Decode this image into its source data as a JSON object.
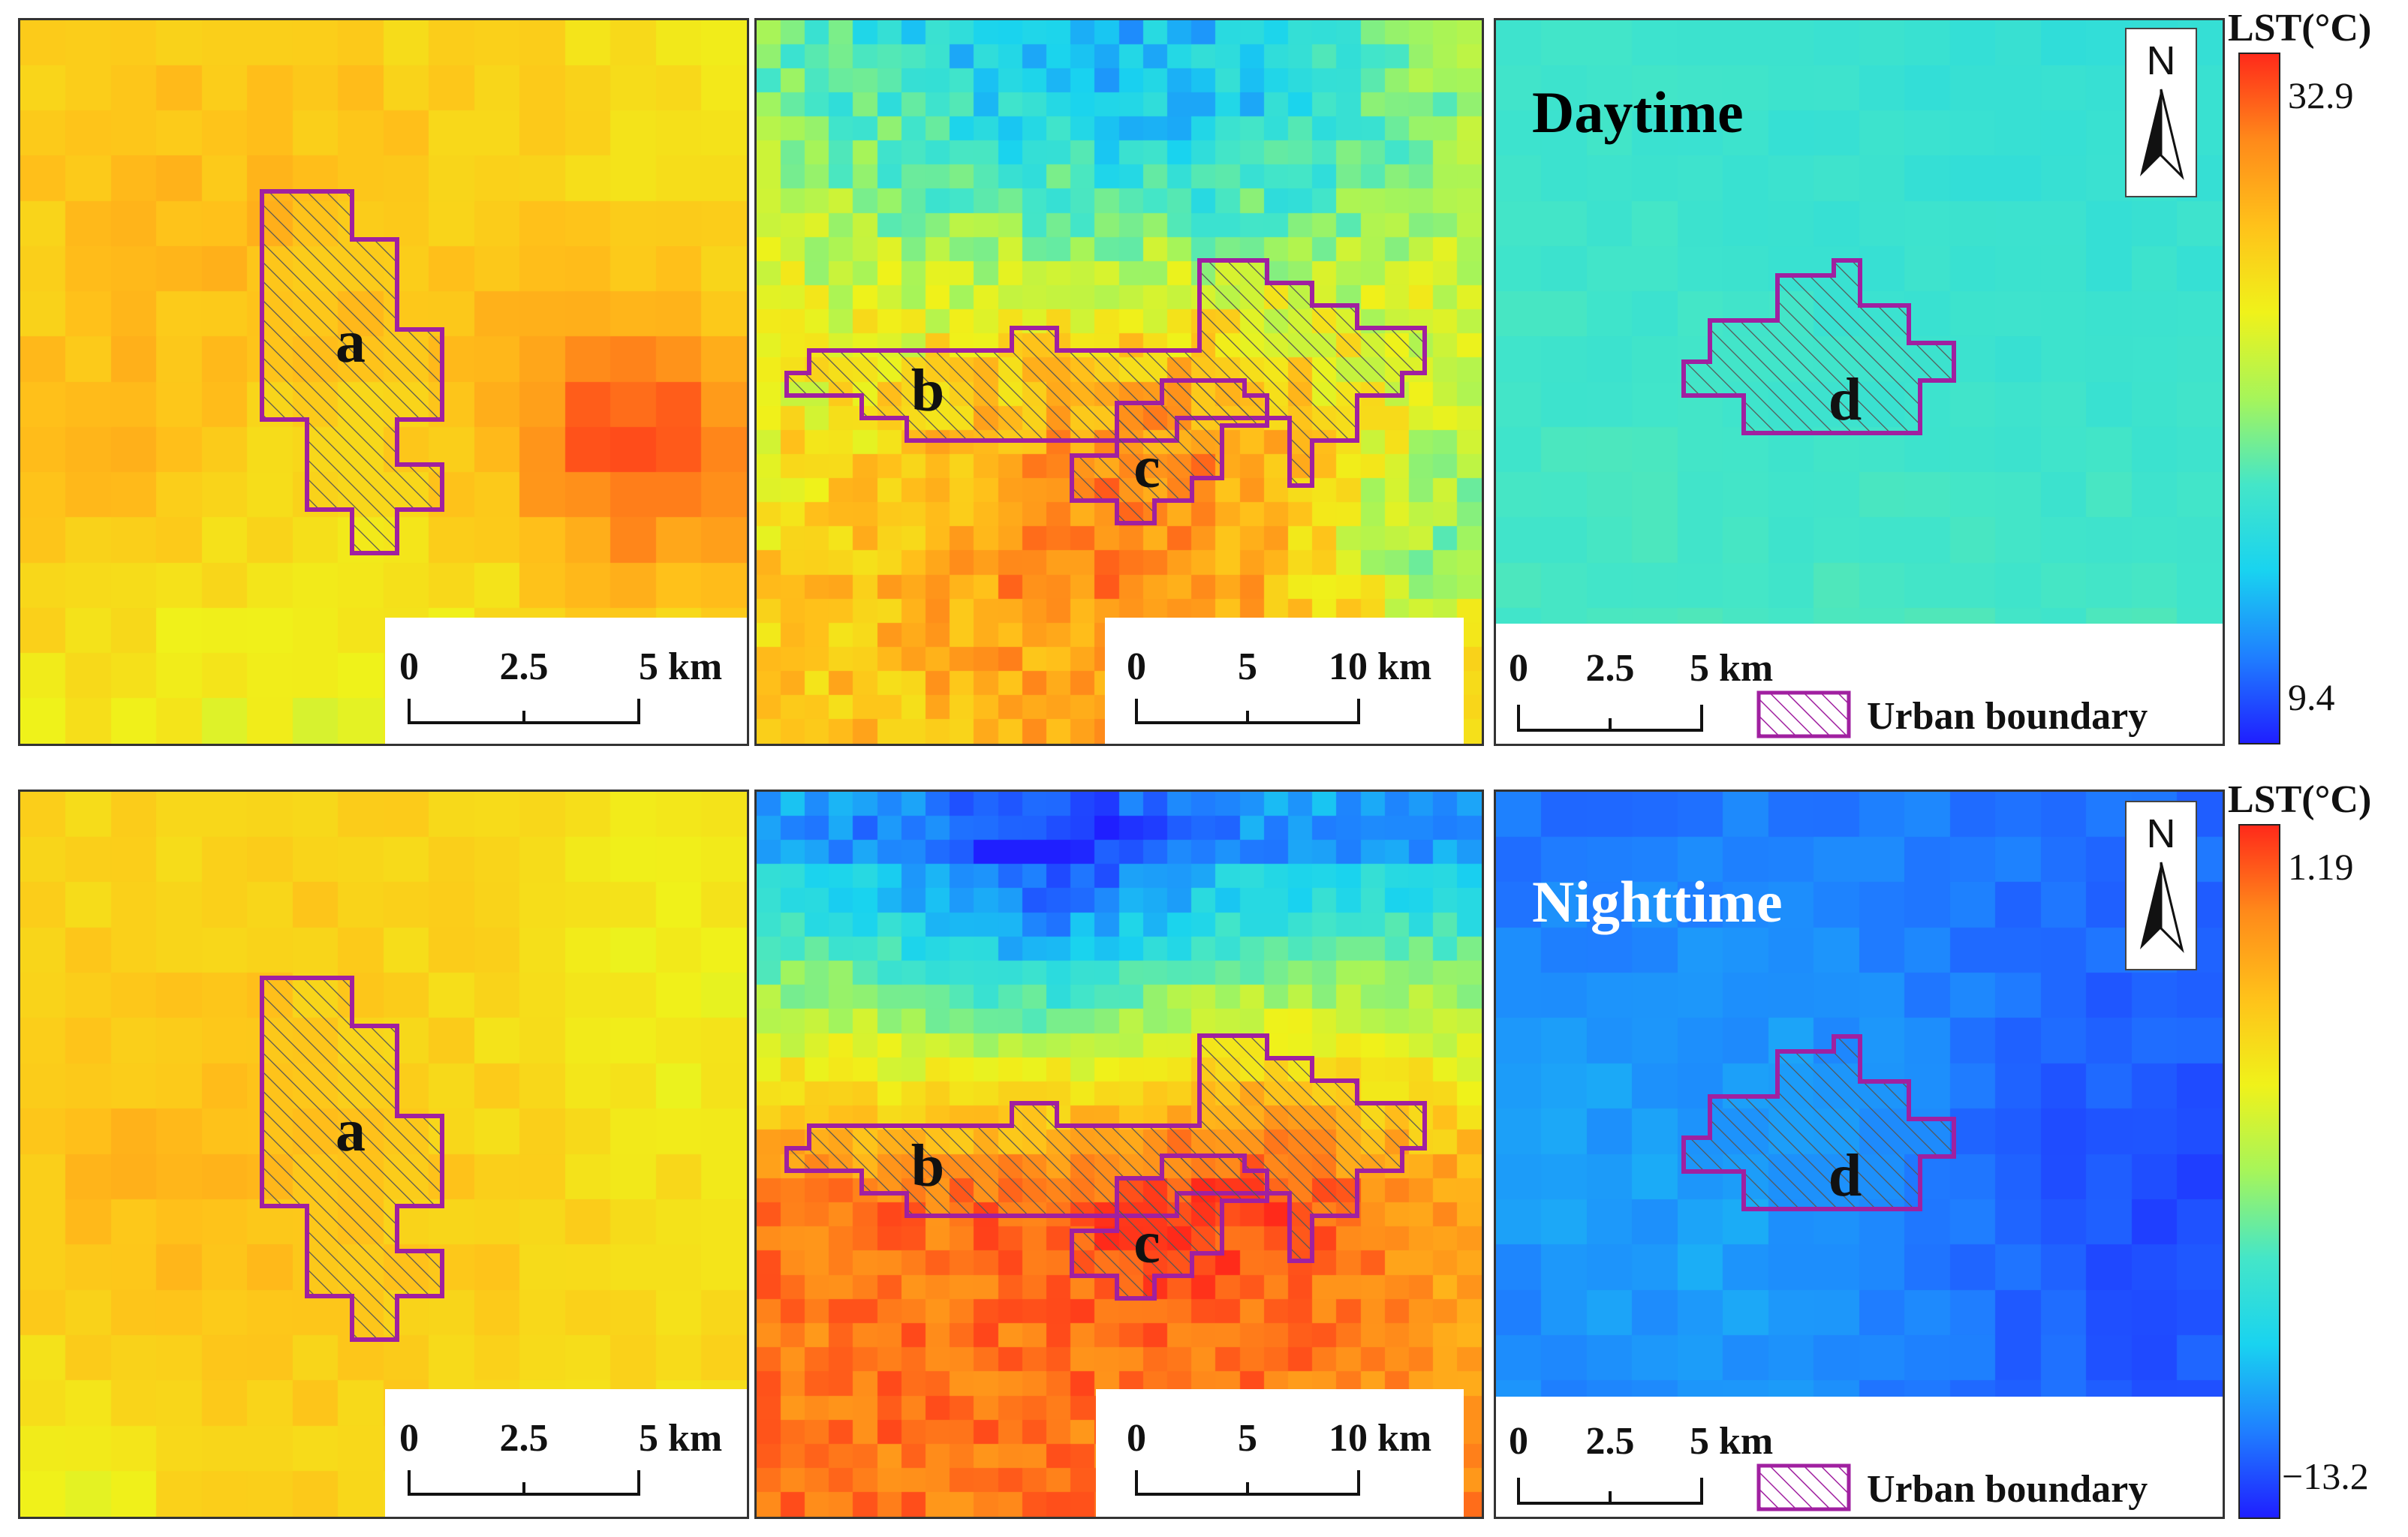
{
  "figure": {
    "rows": [
      {
        "id": "day",
        "title": "Daytime",
        "title_color": "#000000",
        "legend": {
          "title": "LST(°C)",
          "max": "32.9",
          "min": "9.4"
        },
        "panels": [
          {
            "id": "a",
            "labels": [
              "a"
            ],
            "scale": [
              "0",
              "2.5",
              "5 km"
            ],
            "palette": "warm_day"
          },
          {
            "id": "bc",
            "labels": [
              "b",
              "c"
            ],
            "scale": [
              "0",
              "5",
              "10 km"
            ],
            "palette": "mixed_day"
          },
          {
            "id": "d",
            "labels": [
              "d"
            ],
            "scale": [
              "0",
              "2.5",
              "5 km"
            ],
            "palette": "cyan_day",
            "urban_boundary": "Urban boundary"
          }
        ]
      },
      {
        "id": "night",
        "title": "Nighttime",
        "title_color": "#ffffff",
        "legend": {
          "title": "LST(°C)",
          "max": "1.19",
          "min": "−13.2"
        },
        "panels": [
          {
            "id": "a",
            "labels": [
              "a"
            ],
            "scale": [
              "0",
              "2.5",
              "5 km"
            ],
            "palette": "warm_night"
          },
          {
            "id": "bc",
            "labels": [
              "b",
              "c"
            ],
            "scale": [
              "0",
              "5",
              "10 km"
            ],
            "palette": "mixed_night"
          },
          {
            "id": "d",
            "labels": [
              "d"
            ],
            "scale": [
              "0",
              "2.5",
              "5 km"
            ],
            "palette": "blue_night",
            "urban_boundary": "Urban boundary"
          }
        ]
      }
    ],
    "north_label": "N",
    "boundary_color": "#a020a0",
    "colormap": [
      "#1f1fff",
      "#1f7fff",
      "#19d3f0",
      "#44e6c8",
      "#a6f55a",
      "#f0f21a",
      "#ffc21a",
      "#ff8a1a",
      "#ff2a1a"
    ]
  }
}
